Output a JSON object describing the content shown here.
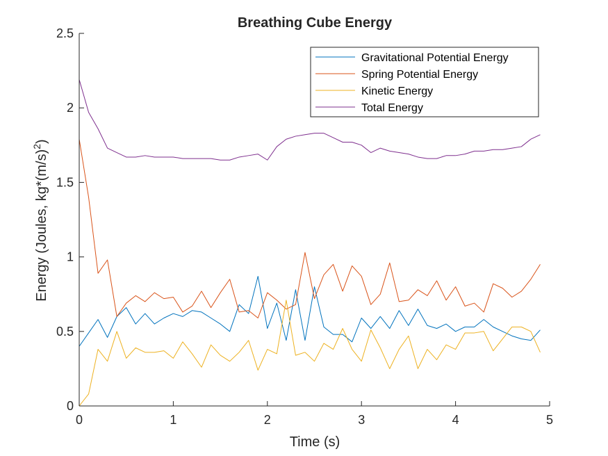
{
  "chart_data": {
    "type": "line",
    "title": "Breathing Cube Energy",
    "xlabel": "Time (s)",
    "ylabel_parts": [
      "Energy (Joules, kg*(m/s)",
      "2",
      ")"
    ],
    "xlim": [
      0,
      5
    ],
    "ylim": [
      0,
      2.5
    ],
    "xticks": [
      0,
      1,
      2,
      3,
      4,
      5
    ],
    "yticks": [
      0,
      0.5,
      1,
      1.5,
      2,
      2.5
    ],
    "ytick_labels": [
      "0",
      "0.5",
      "1",
      "1.5",
      "2",
      "2.5"
    ],
    "grid": false,
    "legend_position": "top-right",
    "x": [
      0,
      0.1,
      0.2,
      0.3,
      0.4,
      0.5,
      0.6,
      0.7,
      0.8,
      0.9,
      1.0,
      1.1,
      1.2,
      1.3,
      1.4,
      1.5,
      1.6,
      1.7,
      1.8,
      1.9,
      2.0,
      2.1,
      2.2,
      2.3,
      2.4,
      2.5,
      2.6,
      2.7,
      2.8,
      2.9,
      3.0,
      3.1,
      3.2,
      3.3,
      3.4,
      3.5,
      3.6,
      3.7,
      3.8,
      3.9,
      4.0,
      4.1,
      4.2,
      4.3,
      4.4,
      4.5,
      4.6,
      4.7,
      4.8,
      4.9
    ],
    "series": [
      {
        "name": "Gravitational Potential Energy",
        "color": "#0072BD",
        "values": [
          0.4,
          0.49,
          0.58,
          0.46,
          0.6,
          0.66,
          0.55,
          0.62,
          0.55,
          0.59,
          0.62,
          0.6,
          0.64,
          0.63,
          0.59,
          0.55,
          0.5,
          0.68,
          0.62,
          0.87,
          0.52,
          0.69,
          0.44,
          0.78,
          0.44,
          0.8,
          0.53,
          0.48,
          0.48,
          0.43,
          0.59,
          0.52,
          0.6,
          0.52,
          0.64,
          0.54,
          0.65,
          0.54,
          0.52,
          0.55,
          0.5,
          0.53,
          0.53,
          0.58,
          0.53,
          0.5,
          0.47,
          0.45,
          0.44,
          0.51
        ]
      },
      {
        "name": "Spring Potential Energy",
        "color": "#D95319",
        "values": [
          1.79,
          1.4,
          0.89,
          0.98,
          0.6,
          0.69,
          0.74,
          0.7,
          0.76,
          0.72,
          0.73,
          0.63,
          0.67,
          0.77,
          0.66,
          0.76,
          0.85,
          0.63,
          0.64,
          0.59,
          0.76,
          0.71,
          0.65,
          0.68,
          1.03,
          0.72,
          0.88,
          0.95,
          0.77,
          0.94,
          0.87,
          0.68,
          0.75,
          0.96,
          0.7,
          0.71,
          0.78,
          0.74,
          0.84,
          0.71,
          0.8,
          0.67,
          0.69,
          0.63,
          0.82,
          0.79,
          0.73,
          0.77,
          0.85,
          0.95
        ]
      },
      {
        "name": "Kinetic Energy",
        "color": "#EDB120",
        "values": [
          0.0,
          0.08,
          0.38,
          0.3,
          0.5,
          0.32,
          0.39,
          0.36,
          0.36,
          0.37,
          0.32,
          0.43,
          0.35,
          0.26,
          0.41,
          0.34,
          0.3,
          0.36,
          0.44,
          0.24,
          0.38,
          0.35,
          0.71,
          0.34,
          0.36,
          0.3,
          0.42,
          0.38,
          0.52,
          0.38,
          0.3,
          0.51,
          0.39,
          0.25,
          0.38,
          0.47,
          0.25,
          0.38,
          0.31,
          0.41,
          0.38,
          0.49,
          0.49,
          0.5,
          0.37,
          0.45,
          0.53,
          0.53,
          0.5,
          0.36
        ]
      },
      {
        "name": "Total Energy",
        "color": "#7E2F8E",
        "values": [
          2.19,
          1.97,
          1.86,
          1.73,
          1.7,
          1.67,
          1.67,
          1.68,
          1.67,
          1.67,
          1.67,
          1.66,
          1.66,
          1.66,
          1.66,
          1.65,
          1.65,
          1.67,
          1.68,
          1.69,
          1.65,
          1.74,
          1.79,
          1.81,
          1.82,
          1.83,
          1.83,
          1.8,
          1.77,
          1.77,
          1.75,
          1.7,
          1.73,
          1.71,
          1.7,
          1.69,
          1.67,
          1.66,
          1.66,
          1.68,
          1.68,
          1.69,
          1.71,
          1.71,
          1.72,
          1.72,
          1.73,
          1.74,
          1.79,
          1.82
        ]
      }
    ]
  }
}
